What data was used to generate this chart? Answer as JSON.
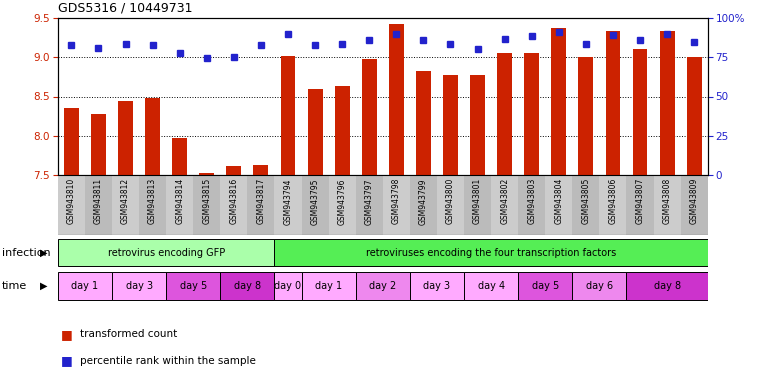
{
  "title": "GDS5316 / 10449731",
  "samples": [
    "GSM943810",
    "GSM943811",
    "GSM943812",
    "GSM943813",
    "GSM943814",
    "GSM943815",
    "GSM943816",
    "GSM943817",
    "GSM943794",
    "GSM943795",
    "GSM943796",
    "GSM943797",
    "GSM943798",
    "GSM943799",
    "GSM943800",
    "GSM943801",
    "GSM943802",
    "GSM943803",
    "GSM943804",
    "GSM943805",
    "GSM943806",
    "GSM943807",
    "GSM943808",
    "GSM943809"
  ],
  "bar_values": [
    8.35,
    8.28,
    8.44,
    8.48,
    7.97,
    7.53,
    7.62,
    7.63,
    9.01,
    8.6,
    8.63,
    8.98,
    9.42,
    8.83,
    8.78,
    8.78,
    9.05,
    9.06,
    9.37,
    9.0,
    9.33,
    9.1,
    9.33,
    9.0
  ],
  "dot_values": [
    9.15,
    9.12,
    9.17,
    9.16,
    9.05,
    8.99,
    9.0,
    9.15,
    9.3,
    9.16,
    9.17,
    9.22,
    9.3,
    9.22,
    9.17,
    9.1,
    9.23,
    9.27,
    9.32,
    9.17,
    9.28,
    9.22,
    9.3,
    9.2
  ],
  "ylim": [
    7.5,
    9.5
  ],
  "yticks": [
    7.5,
    8.0,
    8.5,
    9.0,
    9.5
  ],
  "bar_color": "#cc2200",
  "dot_color": "#2222cc",
  "infection_groups": [
    {
      "label": "retrovirus encoding GFP",
      "start": 0,
      "end": 8,
      "color": "#aaffaa"
    },
    {
      "label": "retroviruses encoding the four transcription factors",
      "start": 8,
      "end": 24,
      "color": "#55ee55"
    }
  ],
  "time_groups": [
    {
      "label": "day 1",
      "start": 0,
      "end": 2,
      "color": "#ffaaff"
    },
    {
      "label": "day 3",
      "start": 2,
      "end": 4,
      "color": "#ffaaff"
    },
    {
      "label": "day 5",
      "start": 4,
      "end": 6,
      "color": "#dd55dd"
    },
    {
      "label": "day 8",
      "start": 6,
      "end": 8,
      "color": "#cc33cc"
    },
    {
      "label": "day 0",
      "start": 8,
      "end": 9,
      "color": "#ffaaff"
    },
    {
      "label": "day 1",
      "start": 9,
      "end": 11,
      "color": "#ffaaff"
    },
    {
      "label": "day 2",
      "start": 11,
      "end": 13,
      "color": "#ee88ee"
    },
    {
      "label": "day 3",
      "start": 13,
      "end": 15,
      "color": "#ffaaff"
    },
    {
      "label": "day 4",
      "start": 15,
      "end": 17,
      "color": "#ffaaff"
    },
    {
      "label": "day 5",
      "start": 17,
      "end": 19,
      "color": "#dd55dd"
    },
    {
      "label": "day 6",
      "start": 19,
      "end": 21,
      "color": "#ee88ee"
    },
    {
      "label": "day 8",
      "start": 21,
      "end": 24,
      "color": "#cc33cc"
    }
  ],
  "right_yticks": [
    0,
    25,
    50,
    75,
    100
  ],
  "right_ylabels": [
    "0",
    "25",
    "50",
    "75",
    "100%"
  ],
  "legend_items": [
    {
      "label": "transformed count",
      "color": "#cc2200"
    },
    {
      "label": "percentile rank within the sample",
      "color": "#2222cc"
    }
  ],
  "bg_color": "#ffffff",
  "left_label_color": "#cc2200",
  "right_label_color": "#2222cc"
}
